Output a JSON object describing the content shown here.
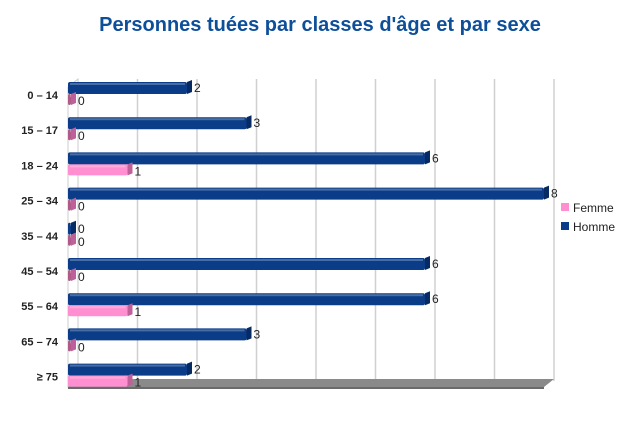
{
  "chart_data": {
    "type": "bar",
    "orientation": "horizontal",
    "title": "Personnes tuées par classes d'âge et par sexe",
    "categories": [
      "0 – 14",
      "15 – 17",
      "18 – 24",
      "25 – 34",
      "35 – 44",
      "45 – 54",
      "55 – 64",
      "65 – 74",
      "≥ 75"
    ],
    "series": [
      {
        "name": "Homme",
        "color": "#0b3c87",
        "values": [
          2,
          3,
          6,
          8,
          0,
          6,
          6,
          3,
          2
        ]
      },
      {
        "name": "Femme",
        "color": "#ff8fd0",
        "values": [
          0,
          0,
          1,
          0,
          0,
          0,
          1,
          0,
          1
        ]
      }
    ],
    "xlim": [
      0,
      8
    ],
    "grid": true,
    "legend": "right",
    "legend_entries": [
      "Femme",
      "Homme"
    ]
  }
}
